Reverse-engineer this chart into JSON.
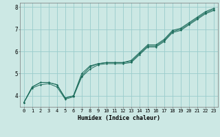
{
  "xlabel": "Humidex (Indice chaleur)",
  "ylabel": "",
  "background_color": "#cce8e4",
  "grid_color": "#99cccc",
  "line_color": "#1a6b5a",
  "marker_color": "#1a6b5a",
  "xlim": [
    -0.5,
    23.5
  ],
  "ylim": [
    3.5,
    8.2
  ],
  "xticks": [
    0,
    1,
    2,
    3,
    4,
    5,
    6,
    7,
    8,
    9,
    10,
    11,
    12,
    13,
    14,
    15,
    16,
    17,
    18,
    19,
    20,
    21,
    22,
    23
  ],
  "yticks": [
    4,
    5,
    6,
    7,
    8
  ],
  "series": [
    [
      3.7,
      4.4,
      4.6,
      4.6,
      4.5,
      3.9,
      4.0,
      4.9,
      5.3,
      5.45,
      5.5,
      5.5,
      5.5,
      5.55,
      5.9,
      6.25,
      6.25,
      6.5,
      6.9,
      7.0,
      7.25,
      7.5,
      7.75,
      7.9
    ],
    [
      3.7,
      4.4,
      4.6,
      4.6,
      4.5,
      3.9,
      4.0,
      5.0,
      5.35,
      5.45,
      5.5,
      5.5,
      5.5,
      5.6,
      5.95,
      6.3,
      6.3,
      6.55,
      6.95,
      7.05,
      7.3,
      7.55,
      7.8,
      7.95
    ],
    [
      3.7,
      4.35,
      4.5,
      4.55,
      4.4,
      3.85,
      3.95,
      4.85,
      5.2,
      5.4,
      5.45,
      5.45,
      5.45,
      5.5,
      5.85,
      6.2,
      6.2,
      6.45,
      6.85,
      6.95,
      7.2,
      7.45,
      7.7,
      7.85
    ]
  ],
  "xlabel_fontsize": 6.0,
  "tick_fontsize": 5.0
}
